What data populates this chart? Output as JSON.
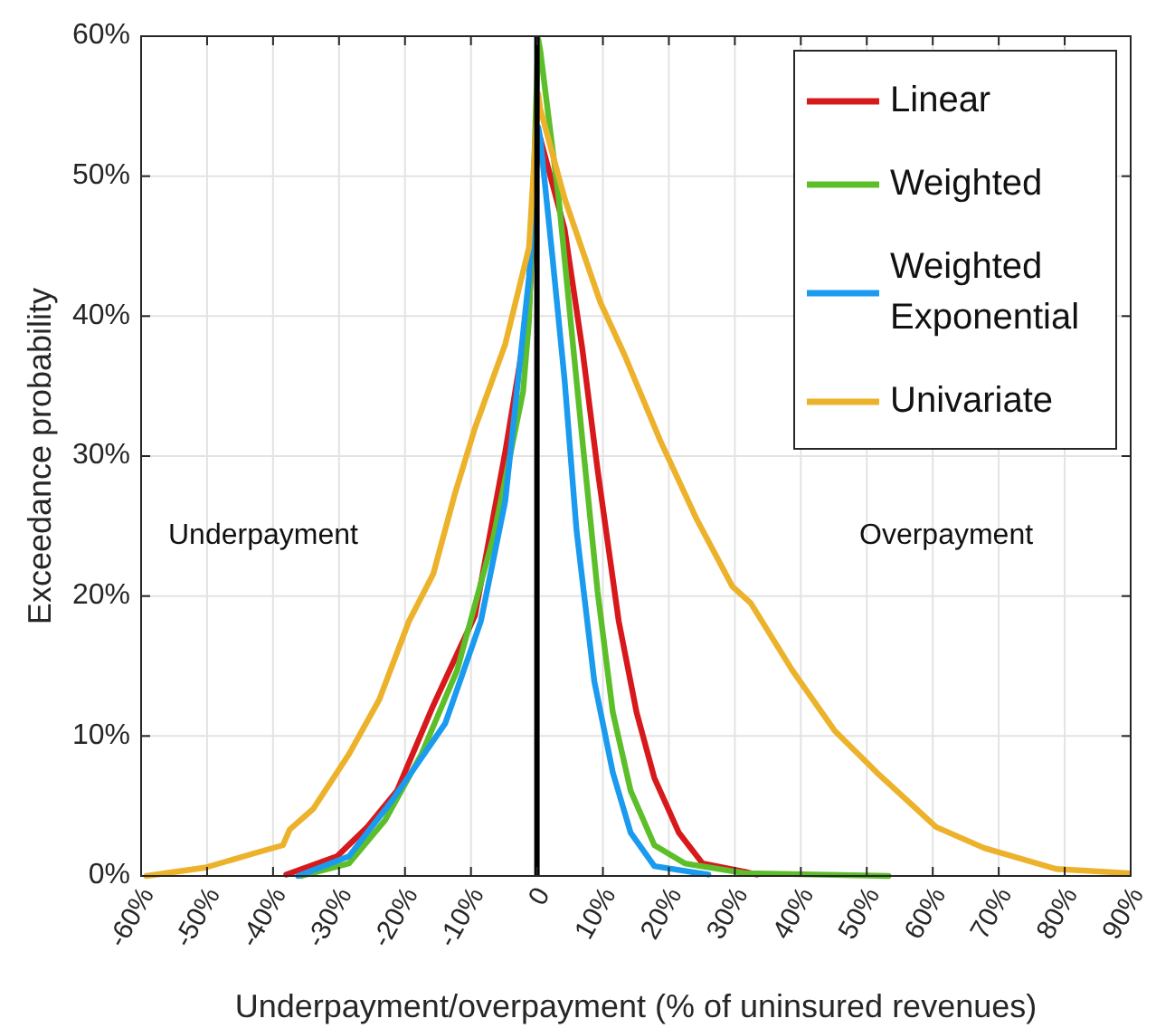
{
  "chart_data": {
    "type": "line",
    "xlabel": "Underpayment/overpayment (% of uninsured revenues)",
    "ylabel": "Exceedance probability",
    "xlim": [
      -60,
      90
    ],
    "ylim": [
      0,
      60
    ],
    "xticks": [
      {
        "value": -60,
        "label": "-60%"
      },
      {
        "value": -50,
        "label": "-50%"
      },
      {
        "value": -40,
        "label": "-40%"
      },
      {
        "value": -30,
        "label": "-30%"
      },
      {
        "value": -20,
        "label": "-20%"
      },
      {
        "value": -10,
        "label": "-10%"
      },
      {
        "value": 0,
        "label": "0"
      },
      {
        "value": 10,
        "label": "10%"
      },
      {
        "value": 20,
        "label": "20%"
      },
      {
        "value": 30,
        "label": "30%"
      },
      {
        "value": 40,
        "label": "40%"
      },
      {
        "value": 50,
        "label": "50%"
      },
      {
        "value": 60,
        "label": "60%"
      },
      {
        "value": 70,
        "label": "70%"
      },
      {
        "value": 80,
        "label": "80%"
      },
      {
        "value": 90,
        "label": "90%"
      }
    ],
    "yticks": [
      {
        "value": 0,
        "label": "0%"
      },
      {
        "value": 10,
        "label": "10%"
      },
      {
        "value": 20,
        "label": "20%"
      },
      {
        "value": 30,
        "label": "30%"
      },
      {
        "value": 40,
        "label": "40%"
      },
      {
        "value": 50,
        "label": "50%"
      },
      {
        "value": 60,
        "label": "60%"
      }
    ],
    "grid": true,
    "legend": "top right",
    "line_style": "solid",
    "ref_lines": [
      {
        "axis": "x",
        "value": 0,
        "color": "#000000"
      }
    ],
    "annotations": [
      "Underpayment",
      "Overpayment"
    ],
    "series": [
      {
        "name": "Linear",
        "color": "#d7191c",
        "x": [
          -38,
          -30.3,
          -25.7,
          -21.2,
          -15.7,
          -9.4,
          -4.8,
          -1.2,
          0.2,
          0.5,
          4.2,
          6.9,
          9.2,
          12.4,
          15.1,
          17.8,
          21.5,
          25.1,
          31.5,
          33.3
        ],
        "values": [
          0.1,
          1.4,
          3.5,
          6.1,
          12.2,
          18.6,
          30.3,
          40.6,
          53,
          52.7,
          46.2,
          37.6,
          29,
          18.2,
          11.7,
          7,
          3.1,
          0.9,
          0.3,
          0.1
        ]
      },
      {
        "name": "Weighted",
        "color": "#5cbf2a",
        "x": [
          -35.7,
          -28.5,
          -23,
          -17.5,
          -12.1,
          -6.6,
          -2.1,
          -1.2,
          0.2,
          0.5,
          3.3,
          5.1,
          6.9,
          9.2,
          11.5,
          14.2,
          17.8,
          22.4,
          31.5,
          53.3
        ],
        "values": [
          0,
          0.9,
          4,
          8.7,
          14.7,
          24.2,
          34.6,
          39.7,
          59.8,
          59,
          48.4,
          39.7,
          31.1,
          20.3,
          11.7,
          6.1,
          2.2,
          0.9,
          0.2,
          0
        ]
      },
      {
        "name": "Weighted Exponential",
        "color": "#1a9bef",
        "x": [
          -36.2,
          -28.5,
          -22.1,
          -13.9,
          -8.5,
          -4.8,
          -1.2,
          0.2,
          0.5,
          2.4,
          4.2,
          6,
          8.7,
          11.5,
          14.2,
          17.8,
          26
        ],
        "values": [
          0,
          1.4,
          5.3,
          10.9,
          18.2,
          26.8,
          42.8,
          53.5,
          52.7,
          44,
          35.4,
          24.7,
          13.9,
          7.4,
          3.1,
          0.7,
          0.1
        ]
      },
      {
        "name": "Univariate",
        "color": "#ecb22b",
        "x": [
          -59.2,
          -50.3,
          -43,
          -38.5,
          -37.5,
          -33.9,
          -28.5,
          -23.9,
          -19.4,
          -15.7,
          -12.5,
          -9.4,
          -4.8,
          -1.2,
          0.2,
          0.5,
          4.2,
          9.6,
          13.3,
          18.7,
          24.2,
          29.6,
          32.4,
          38.7,
          45.1,
          51.5,
          60.5,
          67.8,
          78.7,
          89.6
        ],
        "values": [
          0,
          0.6,
          1.6,
          2.2,
          3.3,
          4.8,
          8.7,
          12.6,
          18.2,
          21.6,
          27.2,
          32,
          38,
          44.9,
          55.9,
          54.8,
          48.4,
          41,
          37.2,
          31.1,
          25.5,
          20.7,
          19.5,
          14.7,
          10.4,
          7.4,
          3.5,
          2,
          0.5,
          0.2
        ]
      }
    ]
  }
}
